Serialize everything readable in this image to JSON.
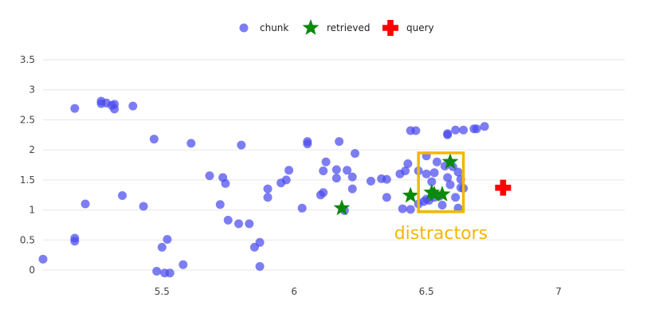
{
  "chart_data": {
    "type": "scatter",
    "title": "",
    "xlabel": "",
    "ylabel": "",
    "xlim": [
      5.05,
      7.25
    ],
    "ylim": [
      -0.1,
      3.6
    ],
    "x_ticks": [
      "5.5",
      "6",
      "6.5",
      "7"
    ],
    "y_ticks": [
      "0",
      "0.5",
      "1",
      "1.5",
      "2",
      "2.5",
      "3",
      "3.5"
    ],
    "grid": "horizontal",
    "legend": {
      "placement": "top-center"
    },
    "colors": {
      "chunk": "#4b4bef",
      "retrieved": "#0a8a0a",
      "query": "#ff0000",
      "highlight": "#f2b705"
    },
    "series": [
      {
        "name": "chunk",
        "marker": "circle",
        "points": [
          [
            5.17,
            2.69
          ],
          [
            5.27,
            2.81
          ],
          [
            5.27,
            2.77
          ],
          [
            5.29,
            2.78
          ],
          [
            5.31,
            2.74
          ],
          [
            5.32,
            2.68
          ],
          [
            5.32,
            2.76
          ],
          [
            5.39,
            2.73
          ],
          [
            5.47,
            2.18
          ],
          [
            5.61,
            2.11
          ],
          [
            5.8,
            2.08
          ],
          [
            6.05,
            2.14
          ],
          [
            6.05,
            2.1
          ],
          [
            6.17,
            2.14
          ],
          [
            6.23,
            1.94
          ],
          [
            5.21,
            1.1
          ],
          [
            5.35,
            1.24
          ],
          [
            5.43,
            1.06
          ],
          [
            5.17,
            0.53
          ],
          [
            5.17,
            0.48
          ],
          [
            5.05,
            0.18
          ],
          [
            5.48,
            -0.02
          ],
          [
            5.51,
            -0.05
          ],
          [
            5.53,
            -0.05
          ],
          [
            5.5,
            0.38
          ],
          [
            5.52,
            0.51
          ],
          [
            5.58,
            0.09
          ],
          [
            5.68,
            1.57
          ],
          [
            5.73,
            1.54
          ],
          [
            5.74,
            1.44
          ],
          [
            5.72,
            1.09
          ],
          [
            5.75,
            0.83
          ],
          [
            5.79,
            0.77
          ],
          [
            5.83,
            0.77
          ],
          [
            5.85,
            0.38
          ],
          [
            5.87,
            0.46
          ],
          [
            5.87,
            0.06
          ],
          [
            5.9,
            1.35
          ],
          [
            5.9,
            1.21
          ],
          [
            5.95,
            1.45
          ],
          [
            5.97,
            1.5
          ],
          [
            5.98,
            1.66
          ],
          [
            6.03,
            1.03
          ],
          [
            6.1,
            1.25
          ],
          [
            6.11,
            1.29
          ],
          [
            6.11,
            1.65
          ],
          [
            6.12,
            1.8
          ],
          [
            6.16,
            1.67
          ],
          [
            6.16,
            1.53
          ],
          [
            6.19,
            0.99
          ],
          [
            6.2,
            1.66
          ],
          [
            6.22,
            1.55
          ],
          [
            6.22,
            1.35
          ],
          [
            6.29,
            1.48
          ],
          [
            6.33,
            1.52
          ],
          [
            6.35,
            1.21
          ],
          [
            6.35,
            1.51
          ],
          [
            6.4,
            1.6
          ],
          [
            6.41,
            1.02
          ],
          [
            6.42,
            1.65
          ],
          [
            6.43,
            1.77
          ],
          [
            6.44,
            1.01
          ],
          [
            6.44,
            2.32
          ],
          [
            6.46,
            2.32
          ],
          [
            6.47,
            1.65
          ],
          [
            6.47,
            1.1
          ],
          [
            6.49,
            1.14
          ],
          [
            6.5,
            1.18
          ],
          [
            6.5,
            1.9
          ],
          [
            6.5,
            1.6
          ],
          [
            6.51,
            1.16
          ],
          [
            6.52,
            1.47
          ],
          [
            6.53,
            1.62
          ],
          [
            6.53,
            1.21
          ],
          [
            6.54,
            1.8
          ],
          [
            6.55,
            1.23
          ],
          [
            6.56,
            1.08
          ],
          [
            6.57,
            1.73
          ],
          [
            6.58,
            1.54
          ],
          [
            6.58,
            2.25
          ],
          [
            6.58,
            2.27
          ],
          [
            6.59,
            1.42
          ],
          [
            6.6,
            1.72
          ],
          [
            6.61,
            1.21
          ],
          [
            6.61,
            2.33
          ],
          [
            6.62,
            1.63
          ],
          [
            6.62,
            1.03
          ],
          [
            6.63,
            1.37
          ],
          [
            6.63,
            1.51
          ],
          [
            6.64,
            2.33
          ],
          [
            6.64,
            1.36
          ],
          [
            6.68,
            2.35
          ],
          [
            6.69,
            2.35
          ],
          [
            6.72,
            2.39
          ]
        ]
      },
      {
        "name": "retrieved",
        "marker": "star",
        "points": [
          [
            6.18,
            1.03
          ],
          [
            6.44,
            1.24
          ],
          [
            6.52,
            1.29
          ],
          [
            6.53,
            1.26
          ],
          [
            6.56,
            1.26
          ],
          [
            6.59,
            1.8
          ]
        ]
      },
      {
        "name": "query",
        "marker": "cross",
        "points": [
          [
            6.79,
            1.37
          ]
        ]
      }
    ],
    "annotations": [
      {
        "text": "distractors",
        "box": {
          "x": [
            6.47,
            6.64
          ],
          "y": [
            0.97,
            1.95
          ]
        }
      }
    ]
  }
}
